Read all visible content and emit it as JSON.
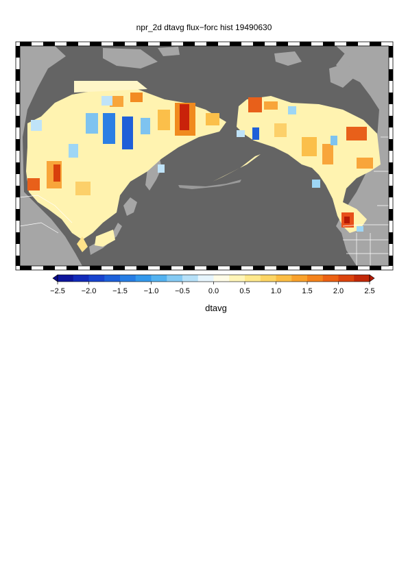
{
  "title": "npr_2d dtavg flux−forc hist 19490630",
  "colorbar": {
    "label": "dtavg",
    "ticks": [
      "−2.5",
      "−2.0",
      "−1.5",
      "−1.0",
      "−0.5",
      "0.0",
      "0.5",
      "1.0",
      "1.5",
      "2.0",
      "2.5"
    ],
    "range": [
      -2.5,
      2.5
    ],
    "colors": [
      "#0b0b8c",
      "#1434c8",
      "#1f6fe0",
      "#3aa6ee",
      "#9ed6f5",
      "#ffffff",
      "#fff2a0",
      "#fccb50",
      "#f8931f",
      "#e8500f",
      "#b51a05"
    ]
  },
  "map": {
    "ocean_color": "#646464",
    "land_masked_color": "#a6a6a6",
    "projection": "rectangular lat-lon, North Pacific (Asia – North America)"
  }
}
